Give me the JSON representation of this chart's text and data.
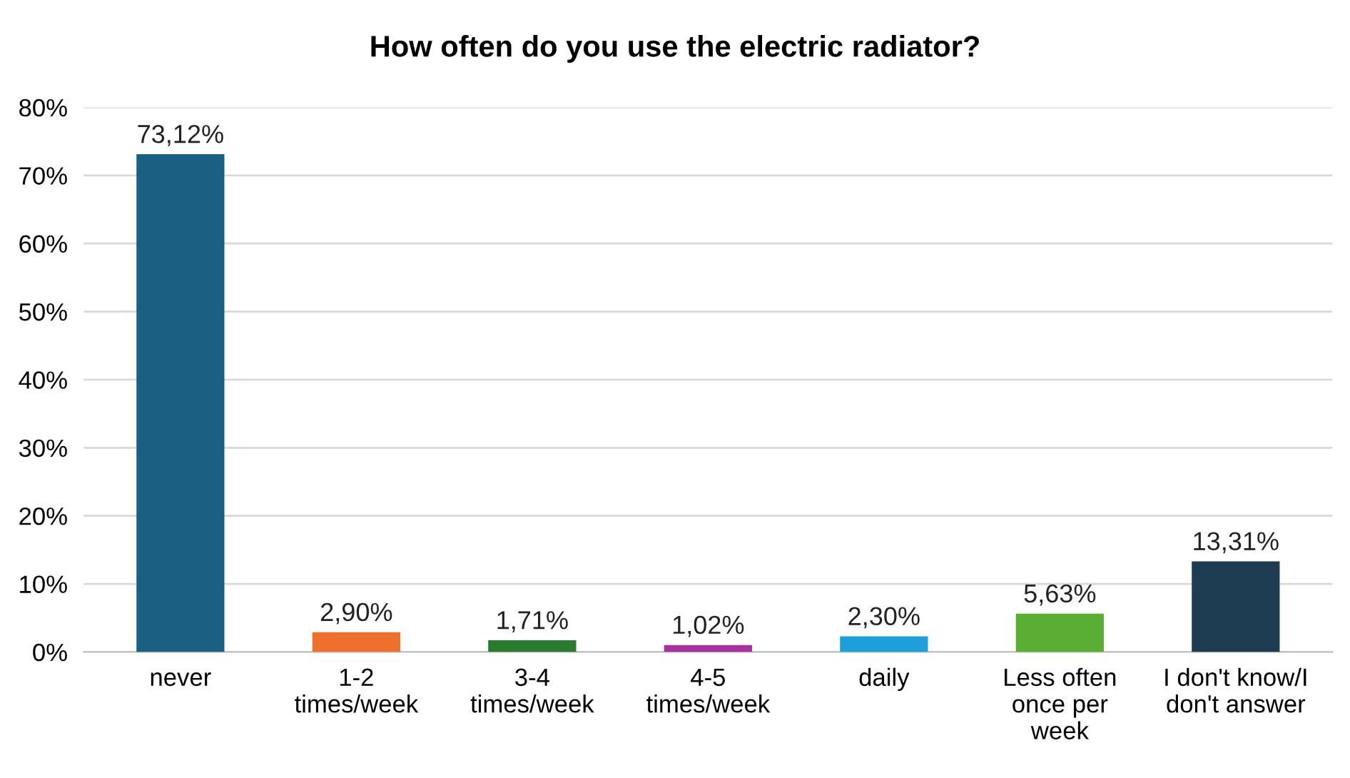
{
  "chart_data": {
    "type": "bar",
    "title": "How often do you use the electric radiator?",
    "categories": [
      "never",
      "1-2\ntimes/week",
      "3-4\ntimes/week",
      "4-5\ntimes/week",
      "daily",
      "Less often\nonce per\nweek",
      "I don't know/I\ndon't answer"
    ],
    "values": [
      73.12,
      2.9,
      1.71,
      1.02,
      2.3,
      5.63,
      13.31
    ],
    "colors": [
      "#195f82",
      "#ef6f2e",
      "#2a7a30",
      "#a72f9e",
      "#1f9fd9",
      "#5aae33",
      "#1f3d52"
    ],
    "value_labels": [
      "73,12%",
      "2,90%",
      "1,71%",
      "1,02%",
      "2,30%",
      "5,63%",
      "13,31%"
    ],
    "ylim": [
      0,
      80
    ],
    "yticks": [
      {
        "value": 0,
        "label": "0%"
      },
      {
        "value": 10,
        "label": "10%"
      },
      {
        "value": 20,
        "label": "20%"
      },
      {
        "value": 30,
        "label": "30%"
      },
      {
        "value": 40,
        "label": "40%"
      },
      {
        "value": 50,
        "label": "50%"
      },
      {
        "value": 60,
        "label": "60%"
      },
      {
        "value": 70,
        "label": "70%"
      },
      {
        "value": 80,
        "label": "80%"
      }
    ],
    "grid": "y"
  }
}
